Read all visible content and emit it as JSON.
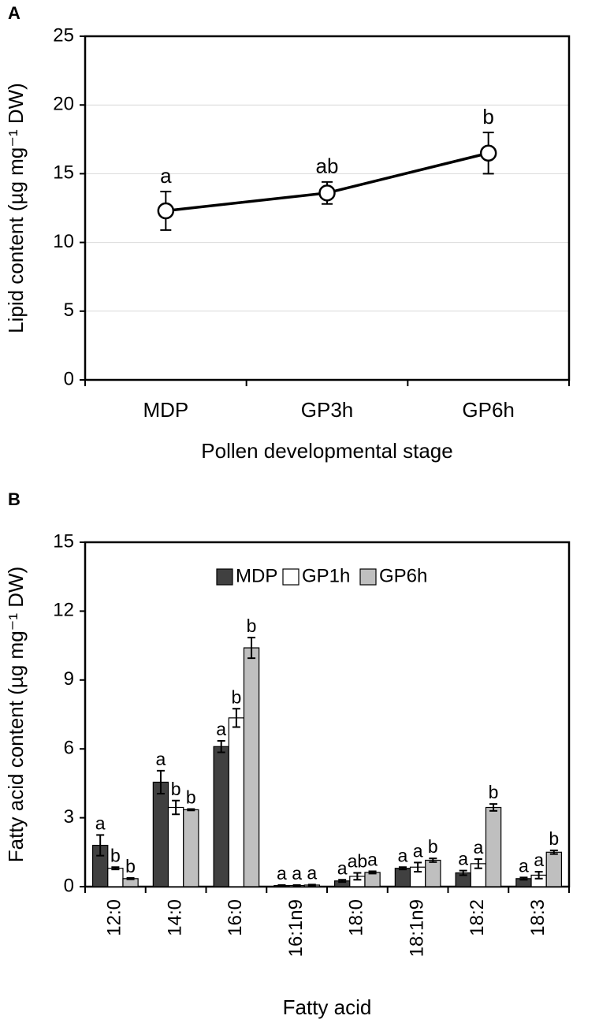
{
  "chart_data": [
    {
      "type": "line",
      "panel_label": "A",
      "x_label": "Pollen developmental stage",
      "y_label": "Lipid content (µg mg⁻¹ DW)",
      "categories": [
        "MDP",
        "GP3h",
        "GP6h"
      ],
      "values": [
        12.3,
        13.6,
        16.5
      ],
      "errors": [
        1.4,
        0.8,
        1.5
      ],
      "annotations": [
        "a",
        "ab",
        "b"
      ],
      "color": "#000000",
      "marker_color": "#ffffff",
      "ylim": [
        0,
        25
      ],
      "yticks": [
        0,
        5,
        10,
        15,
        20,
        25
      ],
      "grid": true
    },
    {
      "type": "bar",
      "panel_label": "B",
      "x_label": "Fatty acid",
      "y_label": "Fatty acid content (µg mg⁻¹ DW)",
      "categories": [
        "12:0",
        "14:0",
        "16:0",
        "16:1n9",
        "18:0",
        "18:1n9",
        "18:2",
        "18:3"
      ],
      "series": [
        {
          "name": "MDP",
          "color": "#404040",
          "values": [
            1.8,
            4.55,
            6.1,
            0.05,
            0.25,
            0.8,
            0.6,
            0.35
          ],
          "errors": [
            0.45,
            0.5,
            0.25,
            0.02,
            0.05,
            0.05,
            0.1,
            0.05
          ],
          "annotations": [
            "a",
            "a",
            "a",
            "a",
            "a",
            "a",
            "a",
            "a"
          ]
        },
        {
          "name": "GP1h",
          "color": "#ffffff",
          "values": [
            0.8,
            3.45,
            7.35,
            0.05,
            0.45,
            0.85,
            1.0,
            0.5
          ],
          "errors": [
            0.05,
            0.3,
            0.4,
            0.02,
            0.15,
            0.2,
            0.2,
            0.15
          ],
          "annotations": [
            "b",
            "b",
            "b",
            "a",
            "ab",
            "a",
            "a",
            "a"
          ]
        },
        {
          "name": "GP6h",
          "color": "#bfbfbf",
          "values": [
            0.35,
            3.35,
            10.4,
            0.07,
            0.62,
            1.15,
            3.45,
            1.5
          ],
          "errors": [
            0.03,
            0.03,
            0.45,
            0.02,
            0.05,
            0.08,
            0.15,
            0.08
          ],
          "annotations": [
            "b",
            "b",
            "b",
            "a",
            "a",
            "b",
            "b",
            "b"
          ]
        }
      ],
      "legend": "top-center",
      "ylim": [
        0,
        15
      ],
      "yticks": [
        0,
        3,
        6,
        9,
        12,
        15
      ],
      "grid": false
    }
  ]
}
